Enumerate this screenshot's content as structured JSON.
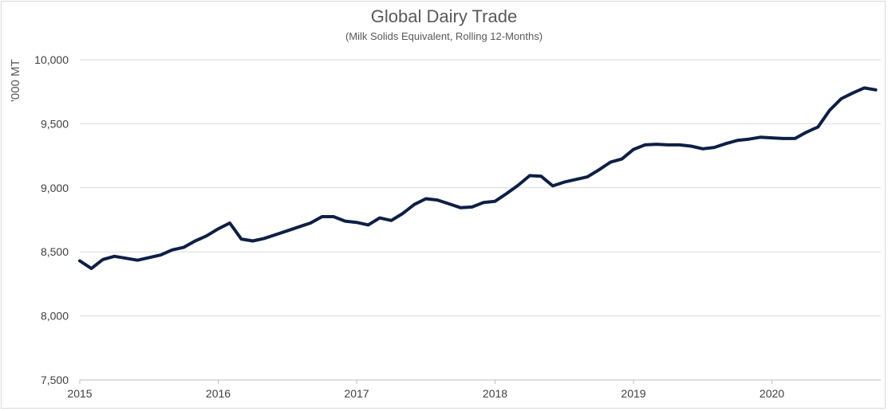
{
  "chart_data": {
    "type": "line",
    "title": "Global Dairy Trade",
    "subtitle": "(Milk Solids Equivalent, Rolling 12-Months)",
    "xlabel": "",
    "ylabel": "'000 MT",
    "ylim": [
      7500,
      10000
    ],
    "yticks": [
      7500,
      8000,
      8500,
      9000,
      9500,
      10000
    ],
    "ytick_labels": [
      "7,500",
      "8,000",
      "8,500",
      "9,000",
      "9,500",
      "10,000"
    ],
    "xlim": [
      "2015-01",
      "2020-10"
    ],
    "xtick_labels": [
      "2015",
      "2016",
      "2017",
      "2018",
      "2019",
      "2020"
    ],
    "grid": "horizontal",
    "legend": "none",
    "line_color": "#0d1f45",
    "series": [
      {
        "x": [
          "2015-01",
          "2015-02",
          "2015-03",
          "2015-04",
          "2015-05",
          "2015-06",
          "2015-07",
          "2015-08",
          "2015-09",
          "2015-10",
          "2015-11",
          "2015-12",
          "2016-01",
          "2016-02",
          "2016-03",
          "2016-04",
          "2016-05",
          "2016-06",
          "2016-07",
          "2016-08",
          "2016-09",
          "2016-10",
          "2016-11",
          "2016-12",
          "2017-01",
          "2017-02",
          "2017-03",
          "2017-04",
          "2017-05",
          "2017-06",
          "2017-07",
          "2017-08",
          "2017-09",
          "2017-10",
          "2017-11",
          "2017-12",
          "2018-01",
          "2018-02",
          "2018-03",
          "2018-04",
          "2018-05",
          "2018-06",
          "2018-07",
          "2018-08",
          "2018-09",
          "2018-10",
          "2018-11",
          "2018-12",
          "2019-01",
          "2019-02",
          "2019-03",
          "2019-04",
          "2019-05",
          "2019-06",
          "2019-07",
          "2019-08",
          "2019-09",
          "2019-10",
          "2019-11",
          "2019-12",
          "2020-01",
          "2020-02",
          "2020-03",
          "2020-04",
          "2020-05",
          "2020-06",
          "2020-07",
          "2020-08",
          "2020-09",
          "2020-10"
        ],
        "values": [
          8430,
          8370,
          8440,
          8465,
          8450,
          8435,
          8455,
          8475,
          8515,
          8535,
          8585,
          8625,
          8680,
          8725,
          8600,
          8585,
          8605,
          8635,
          8665,
          8695,
          8725,
          8775,
          8775,
          8740,
          8730,
          8710,
          8765,
          8745,
          8800,
          8870,
          8915,
          8905,
          8875,
          8845,
          8850,
          8885,
          8895,
          8955,
          9020,
          9095,
          9090,
          9015,
          9045,
          9065,
          9085,
          9140,
          9200,
          9225,
          9300,
          9335,
          9340,
          9335,
          9335,
          9325,
          9305,
          9315,
          9345,
          9370,
          9380,
          9395,
          9390,
          9385,
          9385,
          9435,
          9475,
          9605,
          9695,
          9740,
          9780,
          9765
        ]
      }
    ]
  }
}
